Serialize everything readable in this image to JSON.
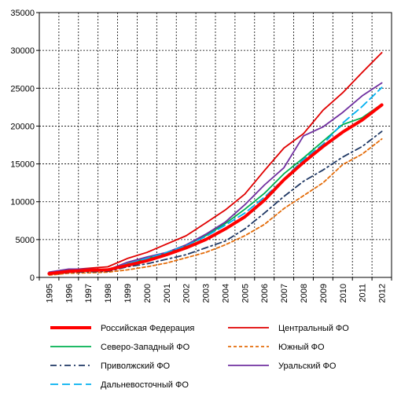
{
  "chart_data": {
    "type": "line",
    "title": "",
    "xlabel": "",
    "ylabel": "",
    "x": [
      "1995",
      "1996",
      "1997",
      "1998",
      "1999",
      "2000",
      "2001",
      "2002",
      "2003",
      "2004",
      "2005",
      "2006",
      "2007",
      "2008",
      "2009",
      "2010",
      "2011",
      "2012"
    ],
    "ylim": [
      0,
      35000
    ],
    "yticks": [
      0,
      5000,
      10000,
      15000,
      20000,
      25000,
      30000,
      35000
    ],
    "grid": true,
    "legend_position": "bottom",
    "series": [
      {
        "name": "Российская Федерация",
        "color": "#ff0000",
        "dash": "solid",
        "width": "thick",
        "values": [
          500,
          800,
          950,
          1000,
          1600,
          2200,
          3000,
          3900,
          5000,
          6400,
          8000,
          10200,
          12900,
          15200,
          17300,
          19200,
          20800,
          22800
        ]
      },
      {
        "name": "Центральный ФО",
        "color": "#e00000",
        "dash": "solid",
        "width": "thin",
        "values": [
          600,
          1000,
          1200,
          1400,
          2500,
          3300,
          4400,
          5500,
          7200,
          8900,
          11000,
          14100,
          17100,
          19000,
          22100,
          24400,
          27100,
          29700
        ]
      },
      {
        "name": "Северо-Западный ФО",
        "color": "#00b050",
        "dash": "solid",
        "width": "thin",
        "values": [
          550,
          900,
          1000,
          1050,
          1800,
          2500,
          3200,
          4200,
          5500,
          7100,
          9000,
          11100,
          13700,
          15800,
          18000,
          20200,
          21100,
          22900
        ]
      },
      {
        "name": "Южный  ФО",
        "color": "#e46c0a",
        "dash": "dash",
        "width": "thin",
        "values": [
          300,
          550,
          600,
          700,
          1000,
          1400,
          1900,
          2600,
          3300,
          4300,
          5500,
          7000,
          9100,
          10800,
          12500,
          14900,
          16300,
          18300
        ]
      },
      {
        "name": "Приволжский ФО",
        "color": "#1f3864",
        "dash": "dashdot",
        "width": "thin",
        "values": [
          400,
          650,
          750,
          800,
          1400,
          1800,
          2400,
          3000,
          3900,
          4800,
          6400,
          8500,
          10700,
          12700,
          14200,
          15900,
          17300,
          19300
        ]
      },
      {
        "name": "Уральский ФО",
        "color": "#7030a0",
        "dash": "solid",
        "width": "thin",
        "values": [
          700,
          1100,
          1100,
          1000,
          2000,
          2700,
          3300,
          4300,
          5700,
          7300,
          9600,
          12200,
          14500,
          18700,
          19900,
          21800,
          24000,
          25700
        ]
      },
      {
        "name": "Дальневосточный ФО",
        "color": "#00b0f0",
        "dash": "longdash",
        "width": "thin",
        "values": [
          500,
          850,
          1000,
          1000,
          1800,
          2500,
          3300,
          4200,
          5400,
          6900,
          8500,
          10600,
          13000,
          15600,
          17600,
          20400,
          22600,
          25100
        ]
      }
    ]
  }
}
